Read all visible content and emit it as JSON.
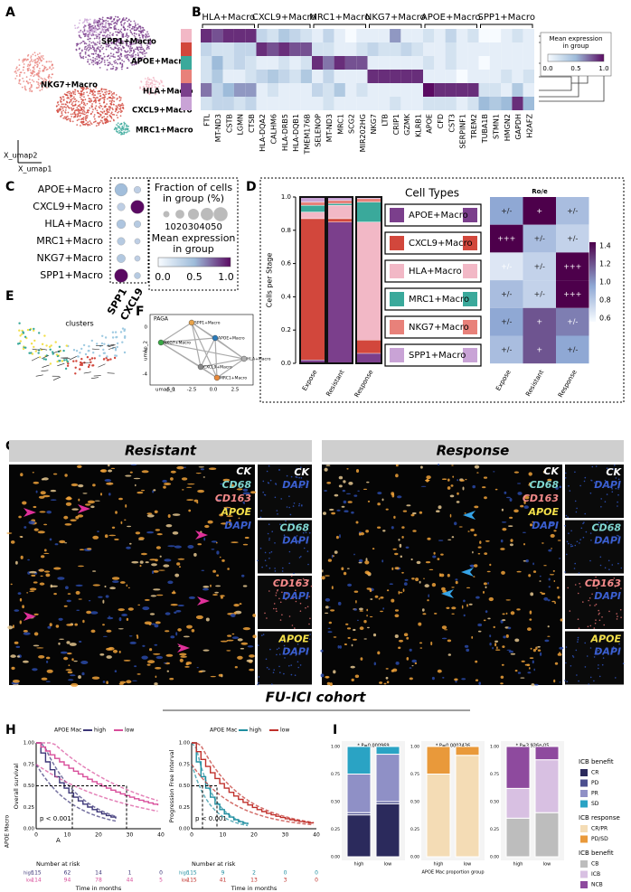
{
  "panel_letters": [
    "A",
    "B",
    "C",
    "D",
    "E",
    "F",
    "G",
    "H",
    "I"
  ],
  "umap": {
    "labels": [
      "SPP1+Macro",
      "APOE+Macro",
      "NKG7+Macro",
      "HLA+Macro",
      "CXCL9+Macro",
      "MRC1+Macro"
    ],
    "ylabel": "X_umap2",
    "xlabel": "X_umap1"
  },
  "heatmap": {
    "groups": [
      "HLA+Macro",
      "CXCL9+Macro",
      "MRC1+Macro",
      "NKG7+Macro",
      "APOE+Macro",
      "SPP1+Macro"
    ],
    "row_colors": [
      "#f2b8c6",
      "#d2473c",
      "#3aa99b",
      "#e8817a",
      "#7b3f8c",
      "#c9a3d6"
    ],
    "genes": [
      "FTL",
      "MT-ND3",
      "CSTB",
      "LGMN",
      "CTSB",
      "HLA-DQA2",
      "CALHM6",
      "HLA-DRB5",
      "HLA-DQB1",
      "TMEM176B",
      "SELENOP",
      "MT-ND3",
      "MRC1",
      "SCG2",
      "MIR202HG",
      "NKG7",
      "LTB",
      "CRIP1",
      "GZMK",
      "KLRB1",
      "APOE",
      "CFD",
      "CST3",
      "SERPINF1",
      "TREM2",
      "TUBA1B",
      "STMN1",
      "HMGN2",
      "GAPDH",
      "H2AFZ"
    ],
    "values": [
      [
        0.9,
        0.8,
        0.9,
        0.9,
        0.9,
        0.3,
        0.2,
        0.4,
        0.3,
        0.2,
        0.1,
        0.3,
        0.1,
        0.0,
        0.1,
        0.1,
        0.1,
        0.6,
        0.1,
        0.1,
        0.2,
        0.1,
        0.3,
        0.1,
        0.2,
        0.0,
        0.0,
        0.1,
        0.2,
        0.1
      ],
      [
        0.3,
        0.2,
        0.2,
        0.3,
        0.3,
        0.9,
        0.8,
        0.9,
        0.8,
        0.8,
        0.2,
        0.2,
        0.1,
        0.1,
        0.2,
        0.3,
        0.2,
        0.2,
        0.3,
        0.2,
        0.1,
        0.1,
        0.2,
        0.1,
        0.1,
        0.1,
        0.1,
        0.1,
        0.1,
        0.1
      ],
      [
        0.2,
        0.5,
        0.2,
        0.3,
        0.2,
        0.1,
        0.1,
        0.2,
        0.1,
        0.2,
        0.9,
        0.7,
        0.9,
        0.8,
        0.8,
        0.1,
        0.1,
        0.1,
        0.1,
        0.1,
        0.2,
        0.1,
        0.2,
        0.1,
        0.1,
        0.0,
        0.1,
        0.1,
        0.1,
        0.1
      ],
      [
        0.2,
        0.4,
        0.1,
        0.1,
        0.2,
        0.3,
        0.4,
        0.3,
        0.2,
        0.4,
        0.1,
        0.3,
        0.1,
        0.1,
        0.1,
        0.9,
        0.9,
        0.9,
        0.9,
        0.9,
        0.1,
        0.1,
        0.1,
        0.0,
        0.1,
        0.1,
        0.1,
        0.2,
        0.1,
        0.2
      ],
      [
        0.7,
        0.3,
        0.5,
        0.6,
        0.6,
        0.1,
        0.2,
        0.1,
        0.1,
        0.1,
        0.3,
        0.2,
        0.4,
        0.1,
        0.2,
        0.1,
        0.1,
        0.1,
        0.1,
        0.1,
        1.0,
        0.9,
        0.9,
        0.9,
        0.9,
        0.2,
        0.2,
        0.1,
        0.4,
        0.1
      ],
      [
        0.2,
        0.3,
        0.3,
        0.2,
        0.3,
        0.1,
        0.1,
        0.1,
        0.1,
        0.1,
        0.1,
        0.2,
        0.1,
        0.1,
        0.1,
        0.1,
        0.1,
        0.2,
        0.1,
        0.1,
        0.2,
        0.2,
        0.2,
        0.1,
        0.2,
        0.5,
        0.4,
        0.5,
        0.9,
        0.5
      ]
    ],
    "legend_title": [
      "Mean expression",
      "in group"
    ],
    "legend_ticks": [
      "0.0",
      "0.5",
      "1.0"
    ]
  },
  "dotplot": {
    "rows": [
      "APOE+Macro",
      "CXCL9+Macro",
      "HLA+Macro",
      "MRC1+Macro",
      "NKG7+Macro",
      "SPP1+Macro"
    ],
    "cols": [
      "SPP1",
      "CXCL9"
    ],
    "fraction": [
      [
        40,
        12
      ],
      [
        15,
        45
      ],
      [
        20,
        12
      ],
      [
        15,
        8
      ],
      [
        18,
        8
      ],
      [
        45,
        10
      ]
    ],
    "mean": [
      [
        0.45,
        0.1
      ],
      [
        0.1,
        1.0
      ],
      [
        0.3,
        0.2
      ],
      [
        0.2,
        0.1
      ],
      [
        0.25,
        0.1
      ],
      [
        1.0,
        0.2
      ]
    ],
    "size_title": [
      "Fraction of cells",
      "in group (%)"
    ],
    "size_ticks": "1020304050",
    "size_values": [
      10,
      20,
      30,
      40,
      50
    ],
    "color_title": [
      "Mean expression",
      "in group"
    ],
    "color_ticks": [
      "0.0",
      "0.5",
      "1.0"
    ]
  },
  "stack": {
    "ylabel": "Cells per Stage",
    "stages": [
      "Expose",
      "Resistant",
      "Response"
    ],
    "yticks": [
      "0.0",
      "0.2",
      "0.4",
      "0.6",
      "0.8",
      "1.0"
    ],
    "legend_title": "Cell Types",
    "series": [
      {
        "name": "APOE+Macro",
        "color": "#7b3f8c",
        "values": [
          0.02,
          0.85,
          0.06
        ]
      },
      {
        "name": "CXCL9+Macro",
        "color": "#d2473c",
        "values": [
          0.85,
          0.02,
          0.08
        ]
      },
      {
        "name": "HLA+Macro",
        "color": "#f2b8c6",
        "values": [
          0.04,
          0.08,
          0.71
        ]
      },
      {
        "name": "MRC1+Macro",
        "color": "#3aa99b",
        "values": [
          0.04,
          0.01,
          0.12
        ]
      },
      {
        "name": "NKG7+Macro",
        "color": "#e8817a",
        "values": [
          0.02,
          0.02,
          0.02
        ]
      },
      {
        "name": "SPP1+Macro",
        "color": "#c9a3d6",
        "values": [
          0.03,
          0.02,
          0.01
        ]
      }
    ]
  },
  "roe": {
    "title": "Ro/e",
    "values": [
      [
        1.0,
        1.5,
        0.9
      ],
      [
        1.5,
        0.9,
        0.8
      ],
      [
        0.7,
        0.8,
        1.5
      ],
      [
        0.9,
        0.8,
        1.5
      ],
      [
        1.0,
        1.2,
        1.1
      ],
      [
        0.9,
        1.2,
        1.0
      ]
    ],
    "labels": [
      [
        "+/-",
        "+",
        "+/-"
      ],
      [
        "+++",
        "+/-",
        "+/-"
      ],
      [
        "+/-",
        "+/-",
        "+++"
      ],
      [
        "+/-",
        "+/-",
        "+++"
      ],
      [
        "+/-",
        "+",
        "+/-"
      ],
      [
        "+/-",
        "+",
        "+/-"
      ]
    ],
    "colorbar_ticks": [
      "1.4",
      "1.2",
      "1.0",
      "0.8",
      "0.6"
    ]
  },
  "velocity": {
    "title": "clusters"
  },
  "paga": {
    "title": "PAGA",
    "nodes": [
      "SPP1+Macro",
      "APOE+Macro",
      "NKG7+Macro",
      "HLA+Macro",
      "CXCL9+Macro",
      "MRC1+Macro"
    ],
    "xlabel": "umap_1",
    "ylabel": "umap_2",
    "xticks": [
      "-5.0",
      "-2.5",
      "0.0",
      "2.5"
    ],
    "yticks": [
      "0",
      "-2",
      "-4"
    ]
  },
  "imaging": {
    "panels": [
      {
        "title": "Resistant",
        "labels": [
          "CK",
          "CD68",
          "CD163",
          "APOE",
          "DAPI"
        ],
        "insets": [
          [
            "CK",
            "DAPI"
          ],
          [
            "CD68",
            "DAPI"
          ],
          [
            "CD163",
            "DAPI"
          ],
          [
            "APOE",
            "DAPI"
          ]
        ]
      },
      {
        "title": "Response",
        "labels": [
          "CK",
          "CD68",
          "CD163",
          "APOE",
          "DAPI"
        ],
        "insets": [
          [
            "CK",
            "DAPI"
          ],
          [
            "CD68",
            "DAPI"
          ],
          [
            "CD163",
            "DAPI"
          ],
          [
            "APOE",
            "DAPI"
          ]
        ]
      }
    ]
  },
  "cohort": "FU-ICI cohort",
  "km": {
    "group_title": "APOE Macro",
    "stray": "A",
    "plots": [
      {
        "legend_title": "APOE Mac",
        "legend": [
          "high",
          "low"
        ],
        "ylabel": "Overall survival",
        "pvalue": "p < 0.001",
        "xlabel": "Time in months",
        "risk_title": "Number at risk",
        "xticks": [
          "0",
          "10",
          "20",
          "30",
          "40"
        ],
        "yticks": [
          "0.00",
          "0.25",
          "0.50",
          "0.75",
          "1.00"
        ],
        "risk": [
          [
            115,
            62,
            14,
            1,
            0
          ],
          [
            114,
            94,
            78,
            44,
            5
          ]
        ]
      },
      {
        "legend_title": "APOE Mac",
        "legend": [
          "high",
          "low"
        ],
        "ylabel": "Progression Free Interval",
        "pvalue": "p < 0.001",
        "xlabel": "Time in months",
        "risk_title": "Number at risk",
        "xticks": [
          "0",
          "10",
          "20",
          "30",
          "40"
        ],
        "yticks": [
          "0.00",
          "0.25",
          "0.50",
          "0.75",
          "1.00"
        ],
        "risk": [
          [
            115,
            9,
            2,
            0,
            0
          ],
          [
            115,
            41,
            13,
            3,
            0
          ]
        ]
      }
    ]
  },
  "response_bars": {
    "xlabel": "APOE Mac proportion group",
    "groups": [
      "high",
      "low"
    ],
    "yticks": [
      "0.00",
      "0.25",
      "0.50",
      "0.75",
      "1.00"
    ],
    "plots": [
      {
        "pvalue": "* P=0.000969",
        "legend_title": "ICB benefit",
        "series": [
          {
            "name": "CR",
            "color": "#2b2a5c",
            "values": [
              0.38,
              0.48
            ]
          },
          {
            "name": "PD",
            "color": "#4c4f8f",
            "values": [
              0.02,
              0.02
            ]
          },
          {
            "name": "PR",
            "color": "#8f90c6",
            "values": [
              0.35,
              0.43
            ]
          },
          {
            "name": "SD",
            "color": "#2aa3c4",
            "values": [
              0.25,
              0.07
            ]
          }
        ]
      },
      {
        "pvalue": "* P=0.0003436",
        "legend_title": "ICB response",
        "series": [
          {
            "name": "CR/PR",
            "color": "#f4dcb5",
            "values": [
              0.75,
              0.92
            ]
          },
          {
            "name": "PD/SD",
            "color": "#e9993a",
            "values": [
              0.25,
              0.08
            ]
          }
        ]
      },
      {
        "pvalue": "* P=3.936e-05",
        "legend_title": "ICB benefit",
        "series": [
          {
            "name": "CB",
            "color": "#bdbdbd",
            "values": [
              0.35,
              0.4
            ]
          },
          {
            "name": "ICB",
            "color": "#d8c0e2",
            "values": [
              0.27,
              0.48
            ]
          },
          {
            "name": "NCB",
            "color": "#8e4a9e",
            "values": [
              0.38,
              0.12
            ]
          }
        ]
      }
    ]
  }
}
